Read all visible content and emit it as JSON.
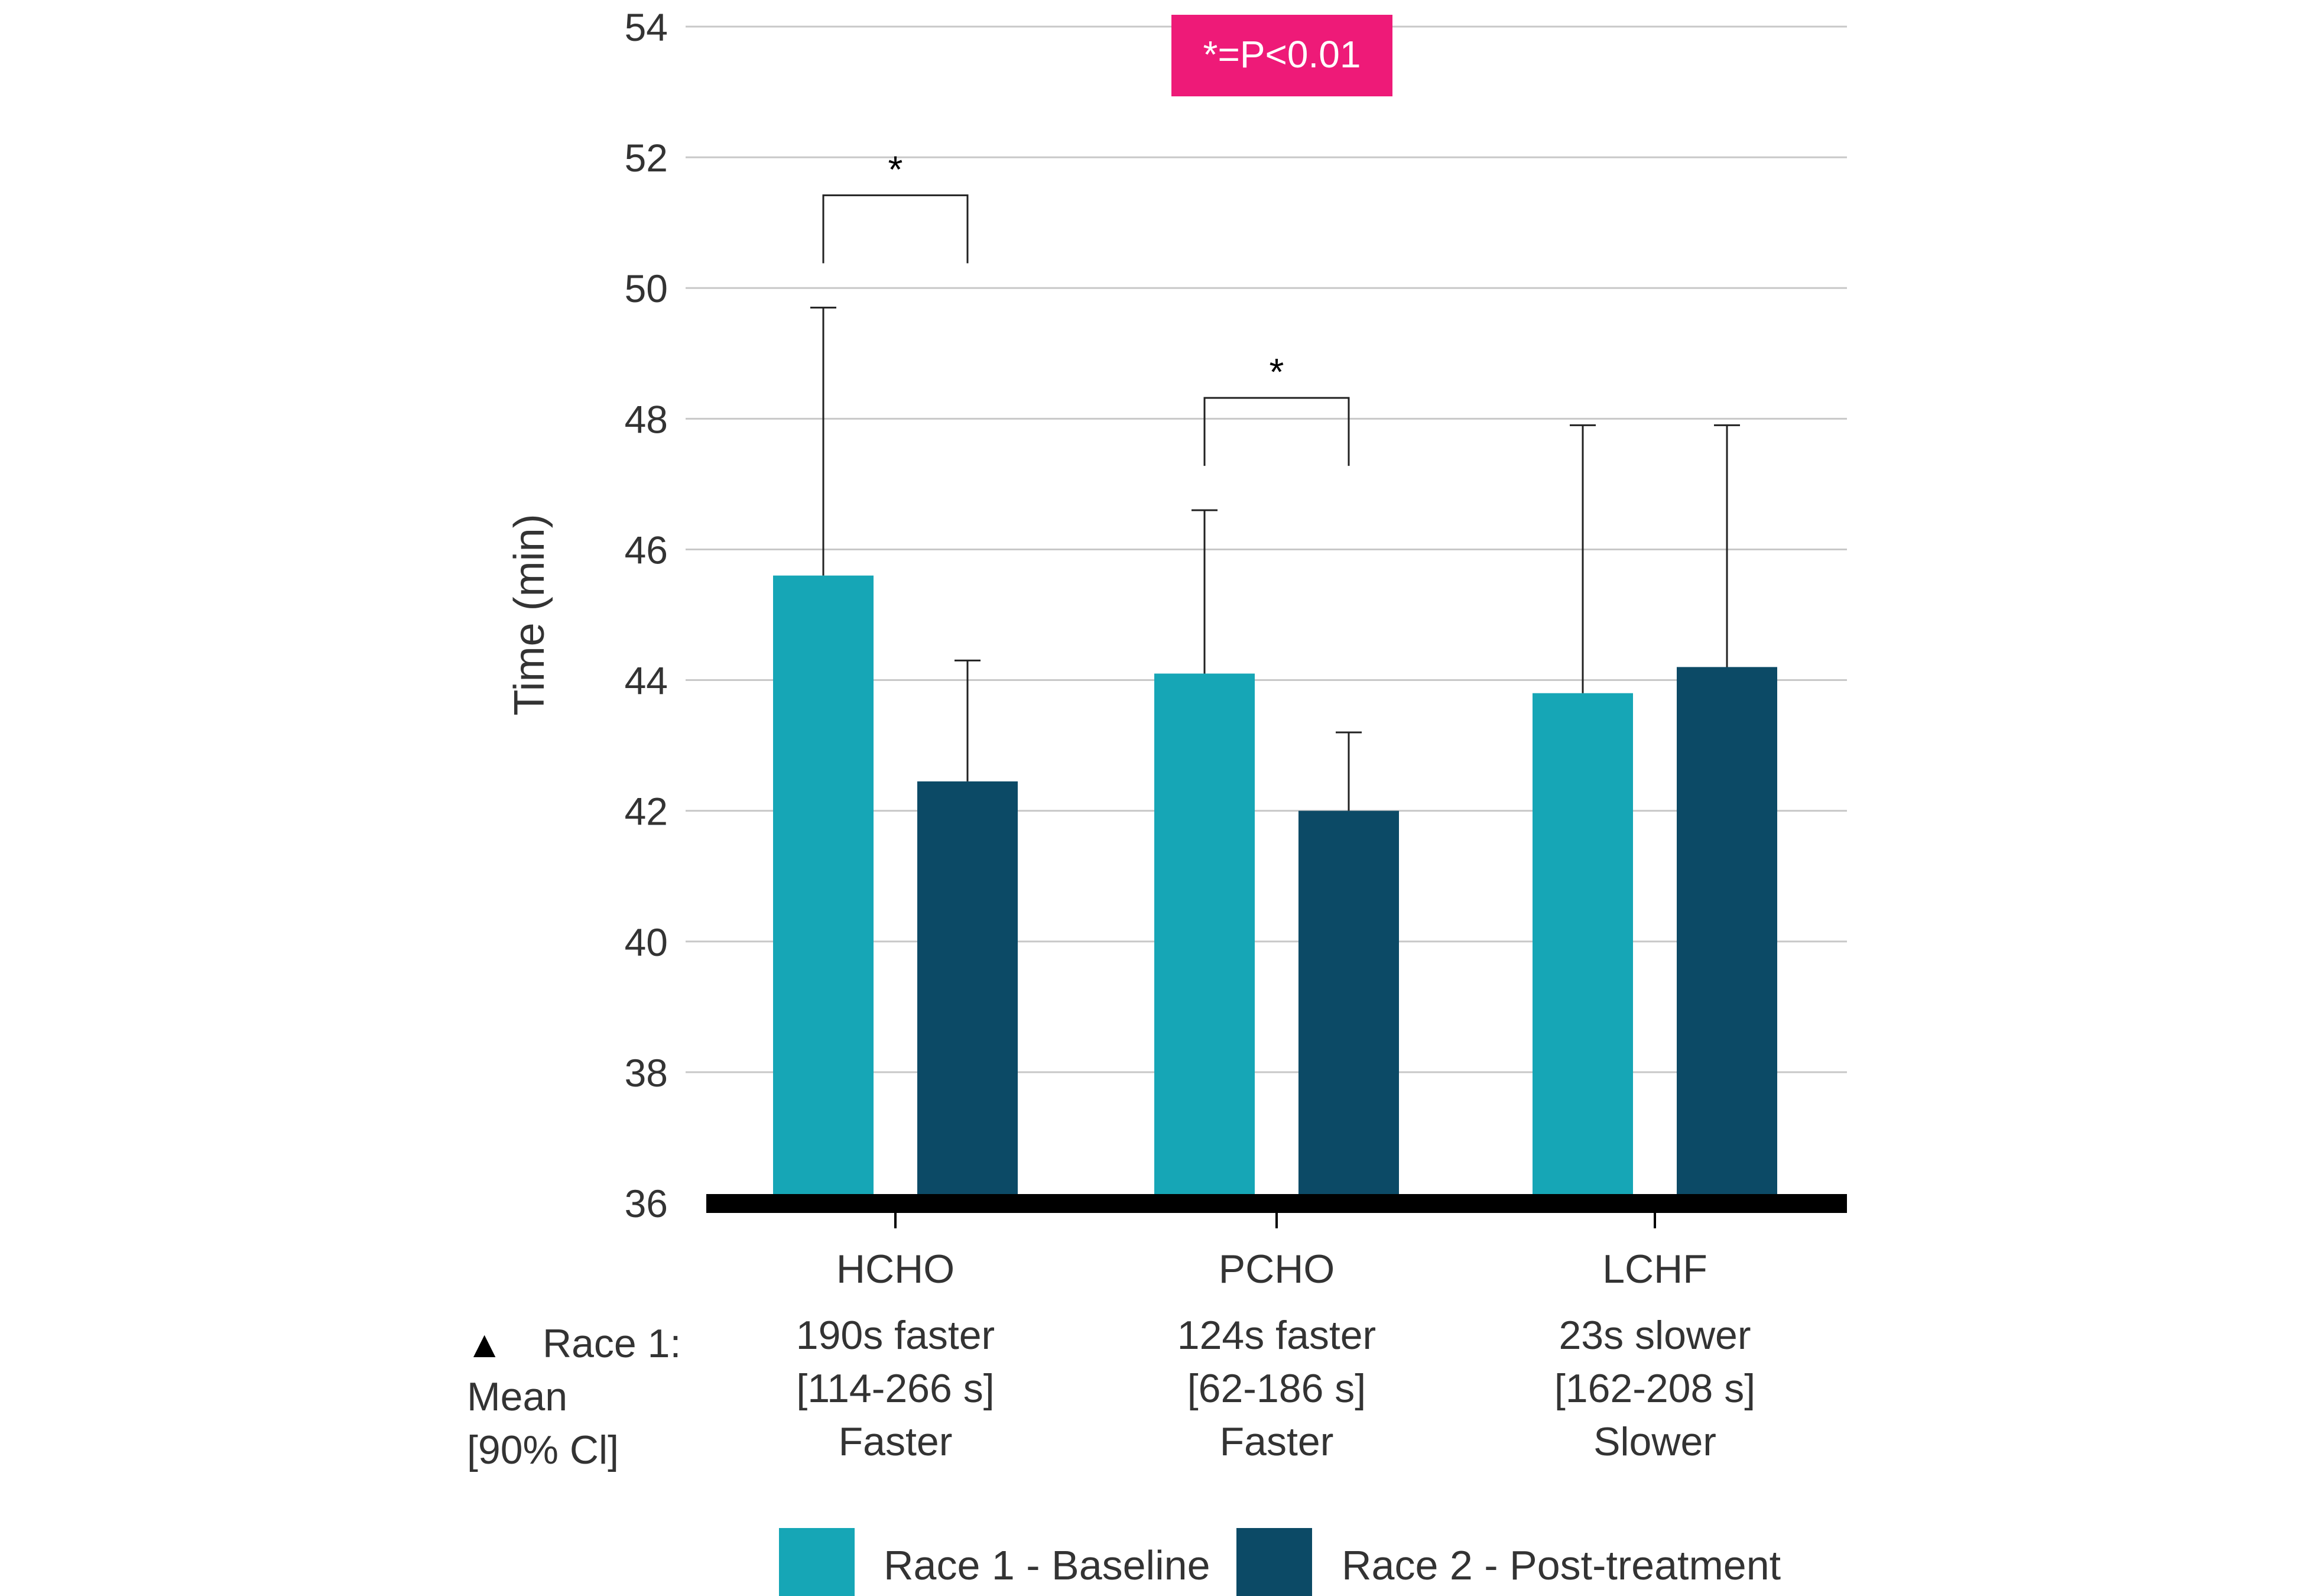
{
  "chart_data": {
    "type": "bar",
    "ylabel": "Time (min)",
    "ylim": [
      36,
      54
    ],
    "yticks": [
      "36",
      "38",
      "40",
      "42",
      "44",
      "46",
      "48",
      "50",
      "52",
      "54"
    ],
    "grid": true,
    "categories": [
      "HCHO",
      "PCHO",
      "LCHF"
    ],
    "series": [
      {
        "name": "Race 1 - Baseline",
        "color": "#16a6b6",
        "values": [
          45.6,
          44.1,
          43.8
        ],
        "error_upper": [
          49.7,
          46.6,
          47.9
        ]
      },
      {
        "name": "Race 2 - Post-treatment",
        "color": "#0c4a66",
        "values": [
          42.45,
          42.0,
          44.2
        ],
        "error_upper": [
          44.3,
          43.2,
          47.9
        ]
      }
    ],
    "significance_marker": "*",
    "significance_brackets": [
      0,
      1
    ],
    "p_value_note": "*=P<0.01",
    "p_value_color": "#ee1a78",
    "category_notes": [
      {
        "line1": "190s faster",
        "line2": "[114-266 s]",
        "line3": "Faster"
      },
      {
        "line1": "124s faster",
        "line2": "[62-186 s]",
        "line3": "Faster"
      },
      {
        "line1": "23s slower",
        "line2": "[162-208 s]",
        "line3": "Slower"
      }
    ],
    "notes_key": {
      "marker": "▲",
      "line1": "Race 1:",
      "line2": "Mean",
      "line3": "[90% Cl]"
    },
    "legend_position": "bottom"
  }
}
